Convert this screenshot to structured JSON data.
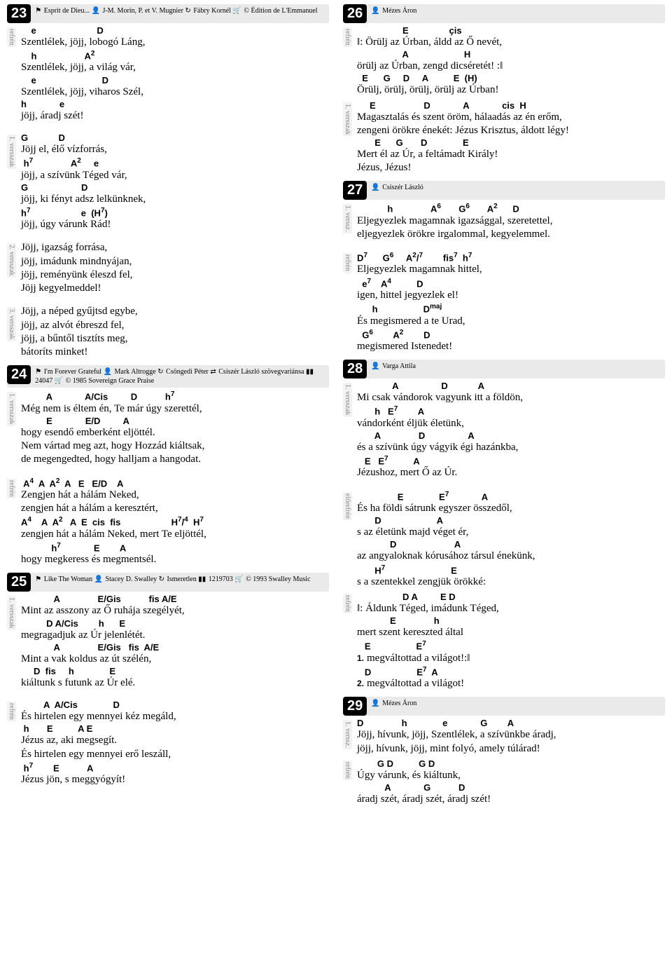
{
  "songs": [
    {
      "num": "23",
      "meta": [
        {
          "icon": "⚑",
          "text": "Esprit de Dieu..."
        },
        {
          "icon": "👤",
          "text": "J-M. Morin, P. et V. Mugnier"
        },
        {
          "icon": "↻",
          "text": "Fábry Kornél"
        },
        {
          "icon": "🛒",
          "text": "© Édition de L'Emmanuel"
        }
      ],
      "sections": [
        {
          "label": "refrén",
          "lines": [
            {
              "c": "    e                        D",
              "l": "Szentlélek, jöjj, lobogó Láng,"
            },
            {
              "c": "    h                   A²",
              "l": "Szentlélek, jöjj, a világ vár,"
            },
            {
              "c": "    e                          D",
              "l": "Szentlélek, jöjj, viharos Szél,"
            },
            {
              "c": "h             e",
              "l": "jöjj, áradj szét!"
            }
          ]
        },
        {
          "spacer": true
        },
        {
          "label": "1. versszak",
          "lines": [
            {
              "c": "G            D",
              "l": "Jöjj el, élő vízforrás,"
            },
            {
              "c": " h⁷               A²     e",
              "l": "jöjj, a szívünk Téged vár,"
            },
            {
              "c": "G                     D",
              "l": "jöjj, ki fényt adsz lelkünknek,"
            },
            {
              "c": "h⁷                    e  (H⁷)",
              "l": "jöjj, úgy várunk Rád!"
            }
          ]
        },
        {
          "spacer": true
        },
        {
          "label": "2. versszak",
          "lines": [
            {
              "l": "Jöjj, igazság forrása,"
            },
            {
              "l": "jöjj, imádunk mindnyájan,"
            },
            {
              "l": "jöjj, reményünk éleszd fel,"
            },
            {
              "l": "Jöjj kegyelmeddel!"
            }
          ]
        },
        {
          "spacer": true
        },
        {
          "label": "3. versszak",
          "lines": [
            {
              "l": "Jöjj, a néped gyűjtsd egybe,"
            },
            {
              "l": "jöjj, az alvót ébreszd fel,"
            },
            {
              "l": "jöjj, a bűntől tisztíts meg,"
            },
            {
              "l": "bátoríts minket!"
            }
          ]
        }
      ]
    },
    {
      "num": "24",
      "meta": [
        {
          "icon": "⚑",
          "text": "I'm Forever Grateful"
        },
        {
          "icon": "👤",
          "text": "Mark Altrogge"
        },
        {
          "icon": "↻",
          "text": "Csöngedi Péter"
        },
        {
          "icon": "⇄",
          "text": "Csiszér László szövegvariánsa"
        },
        {
          "icon": "▮▮",
          "text": "24047"
        },
        {
          "icon": "🛒",
          "text": "© 1985 Sovereign Grace Praise"
        }
      ],
      "sections": [
        {
          "label": "1. versszak",
          "lines": [
            {
              "c": "          A             A/Cis         D           h⁷",
              "l": "Még nem is éltem én, Te már úgy szerettél,"
            },
            {
              "c": "          E             E/D         A",
              "l": "hogy esendő emberként eljöttél."
            },
            {
              "l": "Nem vártad meg azt, hogy Hozzád kiáltsak,"
            },
            {
              "l": "de megengedted, hogy halljam a hangodat."
            }
          ]
        },
        {
          "spacer": true
        },
        {
          "label": "refrén",
          "lines": [
            {
              "c": " A⁴  A  A²  A   E   E/D    A",
              "l": "Zengjen hát a hálám Neked,"
            },
            {
              "l": "zengjen hát a hálám a keresztért,"
            },
            {
              "c": "A⁴    A  A²   A  E  cis  fis                    H⁷/⁴  H⁷",
              "l": "zengjen hát a hálám Neked, mert Te eljöttél,"
            },
            {
              "c": "            h⁷             E        A",
              "l": "hogy megkeress és megmentsél."
            }
          ]
        }
      ]
    },
    {
      "num": "25",
      "meta": [
        {
          "icon": "⚑",
          "text": "Like The Woman"
        },
        {
          "icon": "👤",
          "text": "Stacey D. Swalley"
        },
        {
          "icon": "↻",
          "text": "Ismeretlen"
        },
        {
          "icon": "▮▮",
          "text": "1219703"
        },
        {
          "icon": "🛒",
          "text": "© 1993 Swalley Music"
        }
      ],
      "sections": [
        {
          "label": "1. versszak",
          "lines": [
            {
              "c": "             A               E/Gis           fis A/E",
              "l": "Mint az asszony az Ő ruhája szegélyét,"
            },
            {
              "c": "          D A/Cis        h      E",
              "l": "megragadjuk az Úr jelenlétét."
            },
            {
              "c": "             A               E/Gis   fis  A/E",
              "l": "Mint a vak koldus az út szélén,"
            },
            {
              "c": "     D  fis     h              E",
              "l": "kiáltunk s futunk az Úr elé."
            }
          ]
        },
        {
          "spacer": true
        },
        {
          "label": "refrén",
          "lines": [
            {
              "c": "         A  A/Cis              D",
              "l": "És hirtelen egy mennyei kéz megáld,"
            },
            {
              "c": " h       E          A E",
              "l": "Jézus az, aki megsegít."
            },
            {
              "l": "És hirtelen egy mennyei erő leszáll,"
            },
            {
              "c": " h⁷        E           A",
              "l": "Jézus jön, s meggyógyít!"
            }
          ]
        }
      ]
    }
  ],
  "songs_r": [
    {
      "num": "26",
      "meta": [
        {
          "icon": "👤",
          "text": "Mézes Áron"
        }
      ],
      "sections": [
        {
          "label": "refrén",
          "lines": [
            {
              "c": "                  E                çis",
              "l": "‖: Örülj az Úrban, áldd az Ő nevét,"
            },
            {
              "c": "                  A                      H",
              "l": "örülj az Úrban, zengd dicséretét! :‖"
            },
            {
              "c": "  E      G     D     A          E  (H)",
              "l": "Örülj, örülj, örülj, örülj az Úrban!"
            }
          ]
        },
        {
          "label": "1. versszak",
          "lines": [
            {
              "c": "     E                   D             A             cis  H",
              "l": "Magasztalás és szent öröm, hálaadás az én erőm,"
            },
            {
              "l": "zengeni örökre énekét: Jézus Krisztus, áldott légy!"
            },
            {
              "c": "       E      G       D              E",
              "l": "Mert él az Úr, a feltámadt Király!"
            },
            {
              "l": "Jézus, Jézus!"
            }
          ]
        }
      ]
    },
    {
      "num": "27",
      "meta": [
        {
          "icon": "👤",
          "text": "Csiszér László"
        }
      ],
      "sections": [
        {
          "label": "1. verssz.",
          "lines": [
            {
              "c": "            h               A⁶       G⁶       A²      D",
              "l": "Eljegyezlek magamnak igazsággal, szeretettel,"
            },
            {
              "l": "eljegyezlek örökre irgalommal, kegyelemmel."
            }
          ]
        },
        {
          "spacer": true
        },
        {
          "label": "refrén",
          "lines": [
            {
              "c": "D⁷      G⁶     A²/⁷        fis⁷  h⁷",
              "l": "Eljegyezlek magamnak hittel,"
            },
            {
              "c": "  e⁷    A⁴          D",
              "l": "igen, hittel jegyezlek el!"
            },
            {
              "c": "      h                  Dᵐᵃʲ",
              "l": "És megismered a te Urad,"
            },
            {
              "c": "  G⁶        A²        D",
              "l": "megismered Istenedet!"
            }
          ]
        }
      ]
    },
    {
      "num": "28",
      "meta": [
        {
          "icon": "👤",
          "text": "Varga Attila"
        }
      ],
      "sections": [
        {
          "label": "1. versszak",
          "lines": [
            {
              "c": "              A                 D            A",
              "l": "Mi csak vándorok vagyunk itt a földön,"
            },
            {
              "c": "       h   E⁷        A",
              "l": "vándorként éljük életünk,"
            },
            {
              "c": "       A               D                 A",
              "l": "és a szívünk úgy vágyik égi hazánkba,"
            },
            {
              "c": "   E   E⁷          A",
              "l": "Jézushoz, mert Ő az Úr."
            }
          ]
        },
        {
          "spacer": true
        },
        {
          "label": "előrefrén",
          "lines": [
            {
              "c": "                E              E⁷             A",
              "l": "És ha földi sátrunk egyszer összedől,"
            },
            {
              "c": "       D                      A",
              "l": "s az életünk majd véget ér,"
            },
            {
              "c": "             D                       A",
              "l": "az angyaloknak kórusához társul énekünk,"
            },
            {
              "c": "       H⁷                          E",
              "l": "s a szentekkel zengjük örökké:"
            }
          ]
        },
        {
          "label": "refrén",
          "lines": [
            {
              "c": "                  D A         E D",
              "l": "‖: Áldunk Téged, imádunk Téged,"
            },
            {
              "c": "             E               h",
              "l": "mert szent kereszted által"
            },
            {
              "c": "   E                  E⁷",
              "l": "megváltottad a világot!:‖",
              "ending": "1."
            },
            {
              "c": "   D                  E⁷  A",
              "l": "megváltottad a világot!",
              "ending": "2."
            }
          ]
        }
      ]
    },
    {
      "num": "29",
      "meta": [
        {
          "icon": "👤",
          "text": "Mézes Áron"
        }
      ],
      "sections": [
        {
          "label": "1. verssz.",
          "lines": [
            {
              "c": "D               h              e             G        A",
              "l": "Jöjj, hívunk, jöjj, Szentlélek, a szívünkbe áradj,"
            },
            {
              "l": "jöjj, hívunk, jöjj, mint folyó, amely túlárad!"
            }
          ]
        },
        {
          "label": "refrén",
          "lines": [
            {
              "c": "        G D          G D",
              "l": "Úgy várunk, és kiáltunk,"
            },
            {
              "c": "           A             G           D",
              "l": "áradj szét, áradj szét, áradj szét!"
            }
          ]
        }
      ]
    }
  ]
}
